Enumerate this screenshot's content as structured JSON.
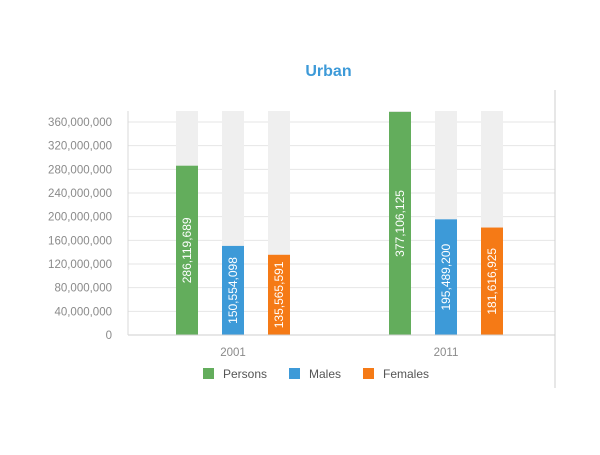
{
  "chart_data": {
    "type": "bar",
    "title": "Urban",
    "xlabel": "",
    "ylabel": "",
    "categories": [
      "2001",
      "2011"
    ],
    "series": [
      {
        "name": "Persons",
        "values": [
          286119689,
          377106125
        ]
      },
      {
        "name": "Males",
        "values": [
          150554098,
          195489200
        ]
      },
      {
        "name": "Females",
        "values": [
          135565591,
          181616925
        ]
      }
    ],
    "data_labels": [
      [
        "286,119,689",
        "377,106,125"
      ],
      [
        "150,554,098",
        "195,489,200"
      ],
      [
        "135,565,591",
        "181,616,925"
      ]
    ],
    "ylim": [
      0,
      360000000
    ],
    "yticks": [
      0,
      40000000,
      80000000,
      120000000,
      160000000,
      200000000,
      240000000,
      280000000,
      320000000,
      360000000
    ],
    "ytick_labels": [
      "0",
      "40,000,000",
      "80,000,000",
      "120,000,000",
      "160,000,000",
      "200,000,000",
      "240,000,000",
      "280,000,000",
      "320,000,000",
      "360,000,000"
    ],
    "grid": true,
    "legend": "bottom-center",
    "colors": {
      "Persons": "#63ad5c",
      "Males": "#3d9ad8",
      "Females": "#f57a16",
      "track": "#efefef",
      "gridline": "#e6e6e6",
      "axis_text": "#8a8a8a",
      "title": "#3d9ad8"
    }
  }
}
